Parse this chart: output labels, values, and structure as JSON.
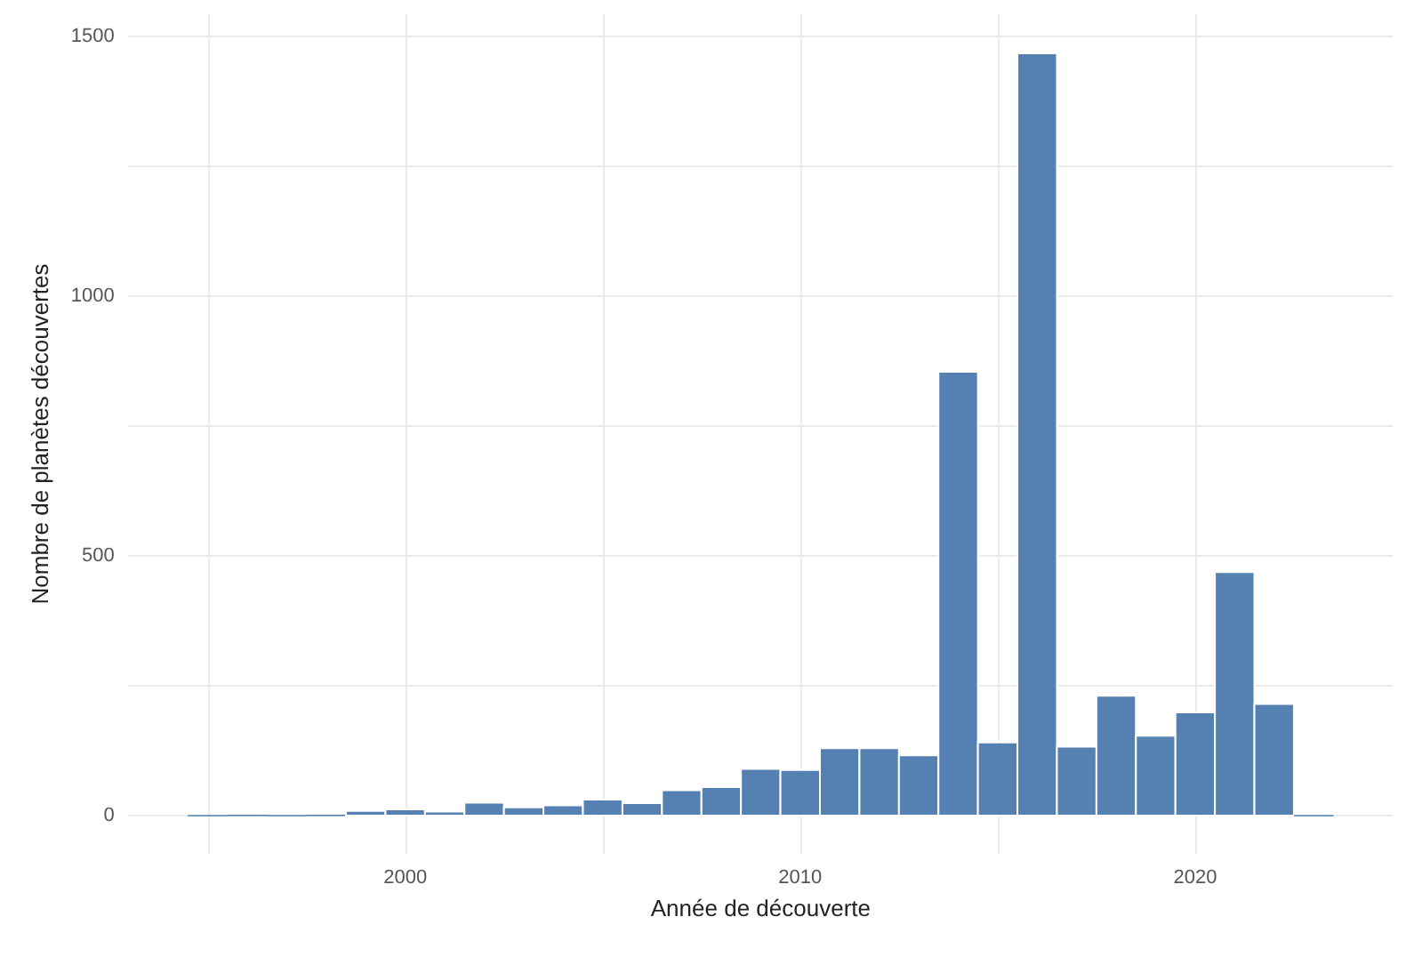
{
  "chart_data": {
    "type": "histogram",
    "xlabel": "Année de découverte",
    "ylabel": "Nombre de planètes découvertes",
    "bins": [
      1994.5,
      1995.5,
      1996.5,
      1997.5,
      1998.5,
      1999.5,
      2000.5,
      2001.5,
      2002.5,
      2003.5,
      2004.5,
      2005.5,
      2006.5,
      2007.5,
      2008.5,
      2009.5,
      2010.5,
      2011.5,
      2012.5,
      2013.5,
      2014.5,
      2015.5,
      2016.5,
      2017.5,
      2018.5,
      2019.5,
      2020.5,
      2021.5,
      2022.5,
      2023.5
    ],
    "values": [
      0,
      1,
      0,
      1,
      9,
      12,
      8,
      25,
      16,
      20,
      31,
      24,
      49,
      55,
      90,
      88,
      130,
      130,
      116,
      855,
      141,
      1468,
      133,
      231,
      154,
      199,
      469,
      215,
      0
    ],
    "color": "#5580b2",
    "xlim": [
      1993,
      2025
    ],
    "xticks": [
      {
        "value": 1995,
        "label": null
      },
      2000,
      {
        "value": 2005,
        "label": null
      },
      2010,
      {
        "value": 2015,
        "label": null
      },
      2020
    ],
    "ylim": [
      -73.5,
      1543.5
    ],
    "yticks": [
      0,
      {
        "value": 250,
        "label": null
      },
      500,
      {
        "value": 750,
        "label": null
      },
      1000,
      {
        "value": 1250,
        "label": null
      },
      1500
    ],
    "grid": true
  }
}
